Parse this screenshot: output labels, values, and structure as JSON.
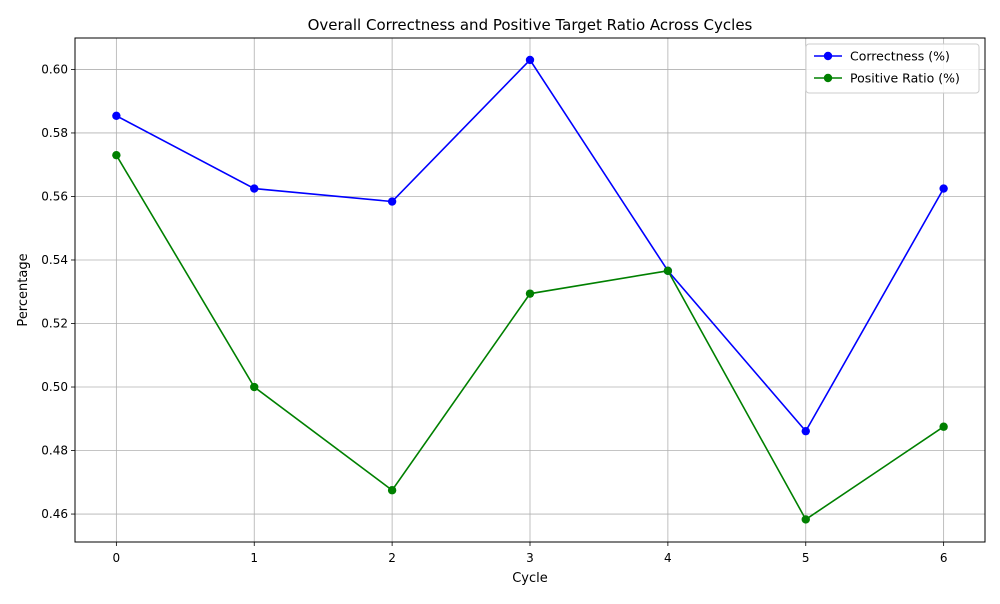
{
  "chart_data": {
    "type": "line",
    "title": "Overall Correctness and Positive Target Ratio Across Cycles",
    "xlabel": "Cycle",
    "ylabel": "Percentage",
    "x": [
      0,
      1,
      2,
      3,
      4,
      5,
      6
    ],
    "xlim": [
      -0.3,
      6.3
    ],
    "ylim": [
      0.4512,
      0.6099
    ],
    "xticks": [
      0,
      1,
      2,
      3,
      4,
      5,
      6
    ],
    "yticks": [
      0.46,
      0.48,
      0.5,
      0.52,
      0.54,
      0.56,
      0.58,
      0.6
    ],
    "ytick_labels": [
      "0.46",
      "0.48",
      "0.50",
      "0.52",
      "0.54",
      "0.56",
      "0.58",
      "0.60"
    ],
    "grid": true,
    "legend_position": "top-right",
    "series": [
      {
        "name": "Correctness (%)",
        "color": "#0000ff",
        "marker": "circle",
        "values": [
          0.5854,
          0.5625,
          0.5584,
          0.603,
          0.5366,
          0.4861,
          0.5625
        ]
      },
      {
        "name": "Positive Ratio (%)",
        "color": "#008000",
        "marker": "circle",
        "values": [
          0.573,
          0.5,
          0.4675,
          0.5294,
          0.5366,
          0.4583,
          0.4875
        ]
      }
    ]
  }
}
